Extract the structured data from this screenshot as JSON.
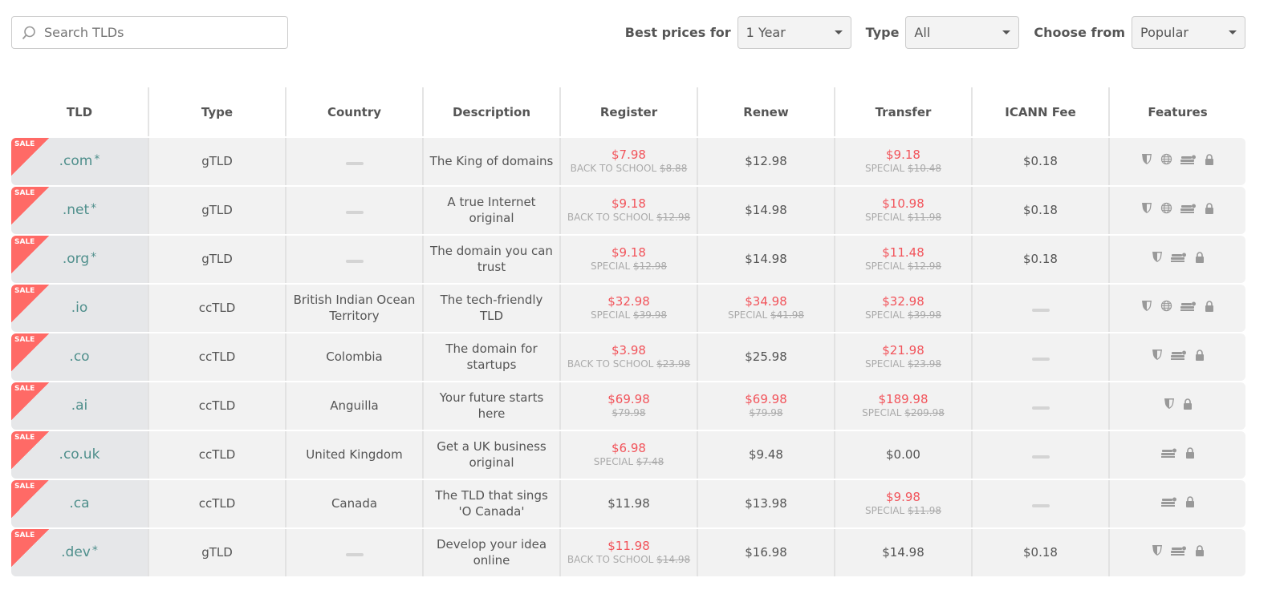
{
  "search": {
    "placeholder": "Search TLDs"
  },
  "filters": [
    {
      "label": "Best prices for",
      "value": "1 Year"
    },
    {
      "label": "Type",
      "value": "All"
    },
    {
      "label": "Choose from",
      "value": "Popular"
    }
  ],
  "columns": [
    "TLD",
    "Type",
    "Country",
    "Description",
    "Register",
    "Renew",
    "Transfer",
    "ICANN Fee",
    "Features"
  ],
  "sale_badge": "SALE",
  "colors": {
    "sale": "#ff6a66",
    "price_red": "#f2545b",
    "tld": "#4f8f8c"
  },
  "rows": [
    {
      "tld": ".com",
      "star": "*",
      "type": "gTLD",
      "country": "",
      "description": "The King of domains",
      "register": {
        "price": "$7.98",
        "label": "BACK TO SCHOOL",
        "old": "$8.88"
      },
      "renew": {
        "price": "$12.98"
      },
      "transfer": {
        "price": "$9.18",
        "label": "SPECIAL",
        "old": "$10.48"
      },
      "icann": "$0.18",
      "features": [
        "shield-icon",
        "globe-icon",
        "server-icon",
        "lock-icon"
      ]
    },
    {
      "tld": ".net",
      "star": "*",
      "type": "gTLD",
      "country": "",
      "description": "A true Internet original",
      "register": {
        "price": "$9.18",
        "label": "BACK TO SCHOOL",
        "old": "$12.98"
      },
      "renew": {
        "price": "$14.98"
      },
      "transfer": {
        "price": "$10.98",
        "label": "SPECIAL",
        "old": "$11.98"
      },
      "icann": "$0.18",
      "features": [
        "shield-icon",
        "globe-icon",
        "server-icon",
        "lock-icon"
      ]
    },
    {
      "tld": ".org",
      "star": "*",
      "type": "gTLD",
      "country": "",
      "description": "The domain you can trust",
      "register": {
        "price": "$9.18",
        "label": "SPECIAL",
        "old": "$12.98"
      },
      "renew": {
        "price": "$14.98"
      },
      "transfer": {
        "price": "$11.48",
        "label": "SPECIAL",
        "old": "$12.98"
      },
      "icann": "$0.18",
      "features": [
        "shield-icon",
        "server-icon",
        "lock-icon"
      ]
    },
    {
      "tld": ".io",
      "star": "",
      "type": "ccTLD",
      "country": "British Indian Ocean Territory",
      "description": "The tech-friendly TLD",
      "register": {
        "price": "$32.98",
        "label": "SPECIAL",
        "old": "$39.98"
      },
      "renew": {
        "price": "$34.98",
        "label": "SPECIAL",
        "old": "$41.98"
      },
      "transfer": {
        "price": "$32.98",
        "label": "SPECIAL",
        "old": "$39.98"
      },
      "icann": "",
      "features": [
        "shield-icon",
        "globe-icon",
        "server-icon",
        "lock-icon"
      ]
    },
    {
      "tld": ".co",
      "star": "",
      "type": "ccTLD",
      "country": "Colombia",
      "description": "The domain for startups",
      "register": {
        "price": "$3.98",
        "label": "BACK TO SCHOOL",
        "old": "$23.98"
      },
      "renew": {
        "price": "$25.98"
      },
      "transfer": {
        "price": "$21.98",
        "label": "SPECIAL",
        "old": "$23.98"
      },
      "icann": "",
      "features": [
        "shield-icon",
        "server-icon",
        "lock-icon"
      ]
    },
    {
      "tld": ".ai",
      "star": "",
      "type": "ccTLD",
      "country": "Anguilla",
      "description": "Your future starts here",
      "register": {
        "price": "$69.98",
        "label": "",
        "old": "$79.98"
      },
      "renew": {
        "price": "$69.98",
        "label": "",
        "old": "$79.98"
      },
      "transfer": {
        "price": "$189.98",
        "label": "SPECIAL",
        "old": "$209.98"
      },
      "icann": "",
      "features": [
        "shield-icon",
        "lock-icon"
      ]
    },
    {
      "tld": ".co.uk",
      "star": "",
      "type": "ccTLD",
      "country": "United Kingdom",
      "description": "Get a UK business original",
      "register": {
        "price": "$6.98",
        "label": "SPECIAL",
        "old": "$7.48"
      },
      "renew": {
        "price": "$9.48"
      },
      "transfer": {
        "price": "$0.00"
      },
      "icann": "",
      "features": [
        "server-icon",
        "lock-icon"
      ]
    },
    {
      "tld": ".ca",
      "star": "",
      "type": "ccTLD",
      "country": "Canada",
      "description": "The TLD that sings 'O Canada'",
      "register": {
        "price": "$11.98"
      },
      "renew": {
        "price": "$13.98"
      },
      "transfer": {
        "price": "$9.98",
        "label": "SPECIAL",
        "old": "$11.98"
      },
      "icann": "",
      "features": [
        "server-icon",
        "lock-icon"
      ]
    },
    {
      "tld": ".dev",
      "star": "*",
      "type": "gTLD",
      "country": "",
      "description": "Develop your idea online",
      "register": {
        "price": "$11.98",
        "label": "BACK TO SCHOOL",
        "old": "$14.98"
      },
      "renew": {
        "price": "$16.98"
      },
      "transfer": {
        "price": "$14.98"
      },
      "icann": "$0.18",
      "features": [
        "shield-icon",
        "server-icon",
        "lock-icon"
      ]
    }
  ]
}
